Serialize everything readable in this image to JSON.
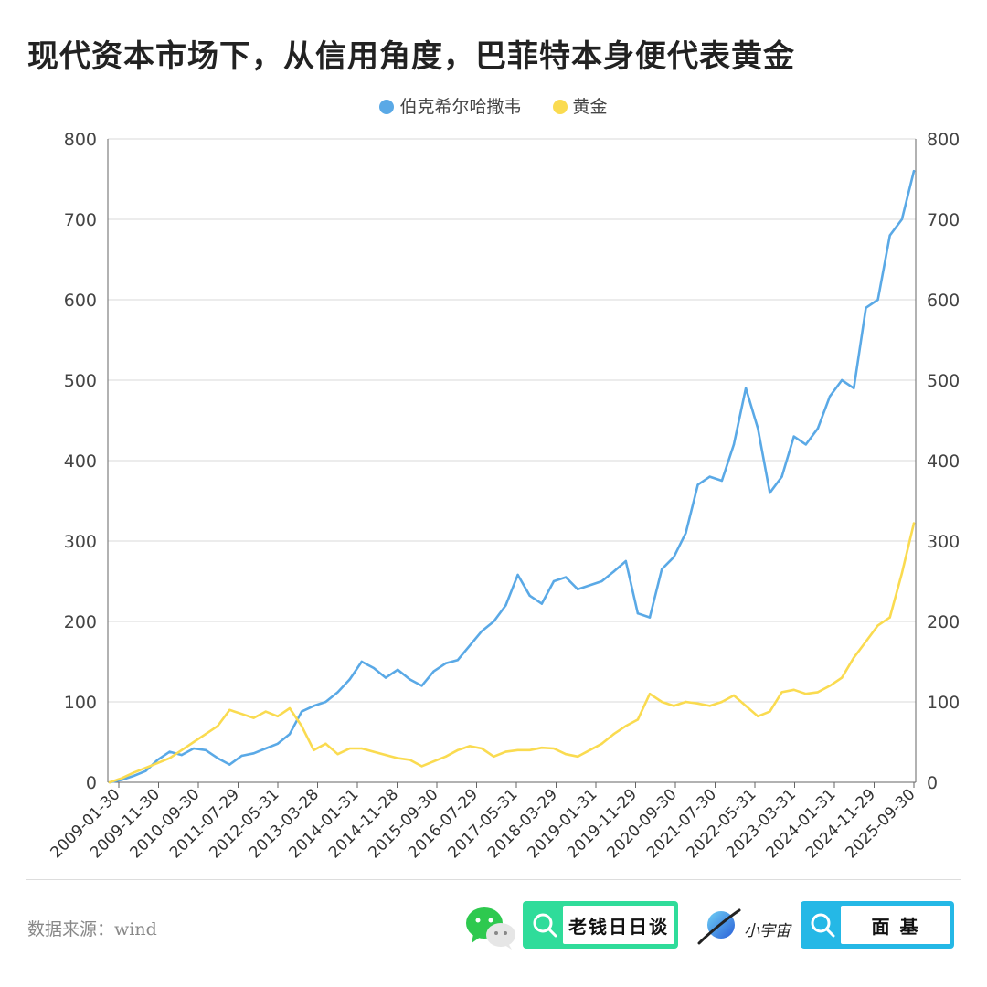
{
  "title": "现代资本市场下，从信用角度，巴菲特本身便代表黄金",
  "footer": {
    "source": "数据来源：wind",
    "badge1": "老钱日日谈",
    "badge2": "面 基",
    "planet_label": "小宇宙"
  },
  "icons": [
    "wechat-icon",
    "search-icon",
    "planet-icon"
  ],
  "colors": {
    "berkshire": "#5aa9e6",
    "gold": "#fadb50",
    "grid": "#d9d9d9",
    "axis": "#666666"
  },
  "chart_data": {
    "type": "line",
    "ylim": [
      0,
      800
    ],
    "yticks": [
      0,
      100,
      200,
      300,
      400,
      500,
      600,
      700,
      800
    ],
    "legend_position": "top-center",
    "grid": true,
    "xticks": [
      "2009-01-30",
      "2009-11-30",
      "2010-09-30",
      "2011-07-29",
      "2012-05-31",
      "2013-03-28",
      "2014-01-31",
      "2014-11-28",
      "2015-09-30",
      "2016-07-29",
      "2017-05-31",
      "2018-03-29",
      "2019-01-31",
      "2019-11-29",
      "2020-09-30",
      "2021-07-30",
      "2022-05-31",
      "2023-03-31",
      "2024-01-31",
      "2024-11-29",
      "2025-09-30"
    ],
    "x": [
      "2009-01",
      "2009-04",
      "2009-07",
      "2009-10",
      "2010-01",
      "2010-04",
      "2010-07",
      "2010-10",
      "2011-01",
      "2011-04",
      "2011-07",
      "2011-10",
      "2012-01",
      "2012-04",
      "2012-07",
      "2012-10",
      "2013-01",
      "2013-04",
      "2013-07",
      "2013-10",
      "2014-01",
      "2014-04",
      "2014-07",
      "2014-10",
      "2015-01",
      "2015-04",
      "2015-07",
      "2015-10",
      "2016-01",
      "2016-04",
      "2016-07",
      "2016-10",
      "2017-01",
      "2017-04",
      "2017-07",
      "2017-10",
      "2018-01",
      "2018-04",
      "2018-07",
      "2018-10",
      "2019-01",
      "2019-04",
      "2019-07",
      "2019-10",
      "2020-01",
      "2020-04",
      "2020-07",
      "2020-10",
      "2021-01",
      "2021-04",
      "2021-07",
      "2021-10",
      "2022-01",
      "2022-04",
      "2022-07",
      "2022-10",
      "2023-01",
      "2023-04",
      "2023-07",
      "2023-10",
      "2024-01",
      "2024-04",
      "2024-07",
      "2024-10",
      "2025-01",
      "2025-04",
      "2025-07",
      "2025-09"
    ],
    "series": [
      {
        "name": "伯克希尔哈撒韦",
        "color": "#5aa9e6",
        "values": [
          0,
          3,
          8,
          14,
          28,
          38,
          34,
          42,
          40,
          30,
          22,
          33,
          36,
          42,
          48,
          60,
          88,
          95,
          100,
          112,
          128,
          150,
          142,
          130,
          140,
          128,
          120,
          138,
          148,
          152,
          170,
          188,
          200,
          220,
          258,
          232,
          222,
          250,
          255,
          240,
          245,
          250,
          262,
          275,
          210,
          205,
          265,
          280,
          310,
          370,
          380,
          375,
          420,
          490,
          440,
          360,
          380,
          430,
          420,
          440,
          480,
          500,
          490,
          590,
          600,
          680,
          700,
          760
        ]
      },
      {
        "name": "黄金",
        "color": "#fadb50",
        "values": [
          0,
          5,
          12,
          18,
          24,
          30,
          40,
          50,
          60,
          70,
          90,
          85,
          80,
          88,
          82,
          92,
          70,
          40,
          48,
          35,
          42,
          42,
          38,
          34,
          30,
          28,
          20,
          26,
          32,
          40,
          45,
          42,
          32,
          38,
          40,
          40,
          43,
          42,
          35,
          32,
          40,
          48,
          60,
          70,
          78,
          110,
          100,
          95,
          100,
          98,
          95,
          100,
          108,
          95,
          82,
          88,
          112,
          115,
          110,
          112,
          120,
          130,
          155,
          175,
          195,
          205,
          260,
          322
        ]
      }
    ]
  }
}
